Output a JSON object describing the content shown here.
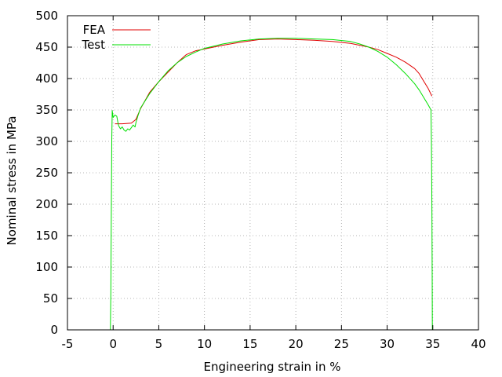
{
  "chart_data": {
    "type": "line",
    "title": "",
    "xlabel": "Engineering strain in %",
    "ylabel": "Nominal stress in MPa",
    "xlim": [
      -5,
      40
    ],
    "ylim": [
      0,
      500
    ],
    "xticks": [
      -5,
      0,
      5,
      10,
      15,
      20,
      25,
      30,
      35,
      40
    ],
    "yticks": [
      0,
      50,
      100,
      150,
      200,
      250,
      300,
      350,
      400,
      450,
      500
    ],
    "xtick_labels": [
      "-5",
      "0",
      "5",
      "10",
      "15",
      "20",
      "25",
      "30",
      "35",
      "40"
    ],
    "ytick_labels": [
      "0",
      "50",
      "100",
      "150",
      "200",
      "250",
      "300",
      "350",
      "400",
      "450",
      "500"
    ],
    "grid": true,
    "legend_position": "top-left",
    "series": [
      {
        "name": "FEA",
        "color": "#e00000",
        "points": [
          [
            0.2,
            328
          ],
          [
            1.0,
            328
          ],
          [
            2.0,
            329
          ],
          [
            2.5,
            335
          ],
          [
            3.0,
            352
          ],
          [
            4.0,
            378
          ],
          [
            5.0,
            395
          ],
          [
            6.0,
            410
          ],
          [
            7.0,
            425
          ],
          [
            8.0,
            438
          ],
          [
            9.0,
            444
          ],
          [
            10.0,
            447
          ],
          [
            12.0,
            453
          ],
          [
            14.0,
            458
          ],
          [
            16.0,
            462
          ],
          [
            18.0,
            463
          ],
          [
            20.0,
            462
          ],
          [
            22.0,
            461
          ],
          [
            24.0,
            459
          ],
          [
            26.0,
            456
          ],
          [
            28.0,
            450
          ],
          [
            29.0,
            446
          ],
          [
            30.0,
            440
          ],
          [
            31.0,
            434
          ],
          [
            32.0,
            426
          ],
          [
            33.0,
            416
          ],
          [
            33.5,
            408
          ],
          [
            34.0,
            396
          ],
          [
            34.5,
            384
          ],
          [
            34.9,
            372
          ]
        ]
      },
      {
        "name": "Test",
        "color": "#00e000",
        "points": [
          [
            -0.3,
            0
          ],
          [
            -0.25,
            60
          ],
          [
            -0.2,
            180
          ],
          [
            -0.15,
            300
          ],
          [
            -0.1,
            349
          ],
          [
            0.0,
            338
          ],
          [
            0.2,
            342
          ],
          [
            0.4,
            340
          ],
          [
            0.5,
            332
          ],
          [
            0.6,
            325
          ],
          [
            0.8,
            320
          ],
          [
            1.0,
            323
          ],
          [
            1.2,
            318
          ],
          [
            1.4,
            316
          ],
          [
            1.6,
            320
          ],
          [
            1.8,
            318
          ],
          [
            2.0,
            322
          ],
          [
            2.2,
            326
          ],
          [
            2.4,
            323
          ],
          [
            2.5,
            330
          ],
          [
            2.7,
            340
          ],
          [
            3.0,
            353
          ],
          [
            4.0,
            376
          ],
          [
            5.0,
            395
          ],
          [
            6.0,
            412
          ],
          [
            7.0,
            425
          ],
          [
            8.0,
            435
          ],
          [
            9.0,
            442
          ],
          [
            10.0,
            448
          ],
          [
            12.0,
            455
          ],
          [
            14.0,
            460
          ],
          [
            16.0,
            463
          ],
          [
            18.0,
            464
          ],
          [
            20.0,
            464
          ],
          [
            22.0,
            463
          ],
          [
            24.0,
            462
          ],
          [
            26.0,
            459
          ],
          [
            27.0,
            455
          ],
          [
            28.0,
            450
          ],
          [
            29.0,
            443
          ],
          [
            30.0,
            434
          ],
          [
            31.0,
            422
          ],
          [
            32.0,
            408
          ],
          [
            33.0,
            392
          ],
          [
            33.5,
            382
          ],
          [
            34.0,
            370
          ],
          [
            34.5,
            358
          ],
          [
            34.8,
            350
          ],
          [
            34.85,
            300
          ],
          [
            34.9,
            200
          ],
          [
            34.93,
            100
          ],
          [
            34.95,
            0
          ]
        ]
      }
    ]
  }
}
